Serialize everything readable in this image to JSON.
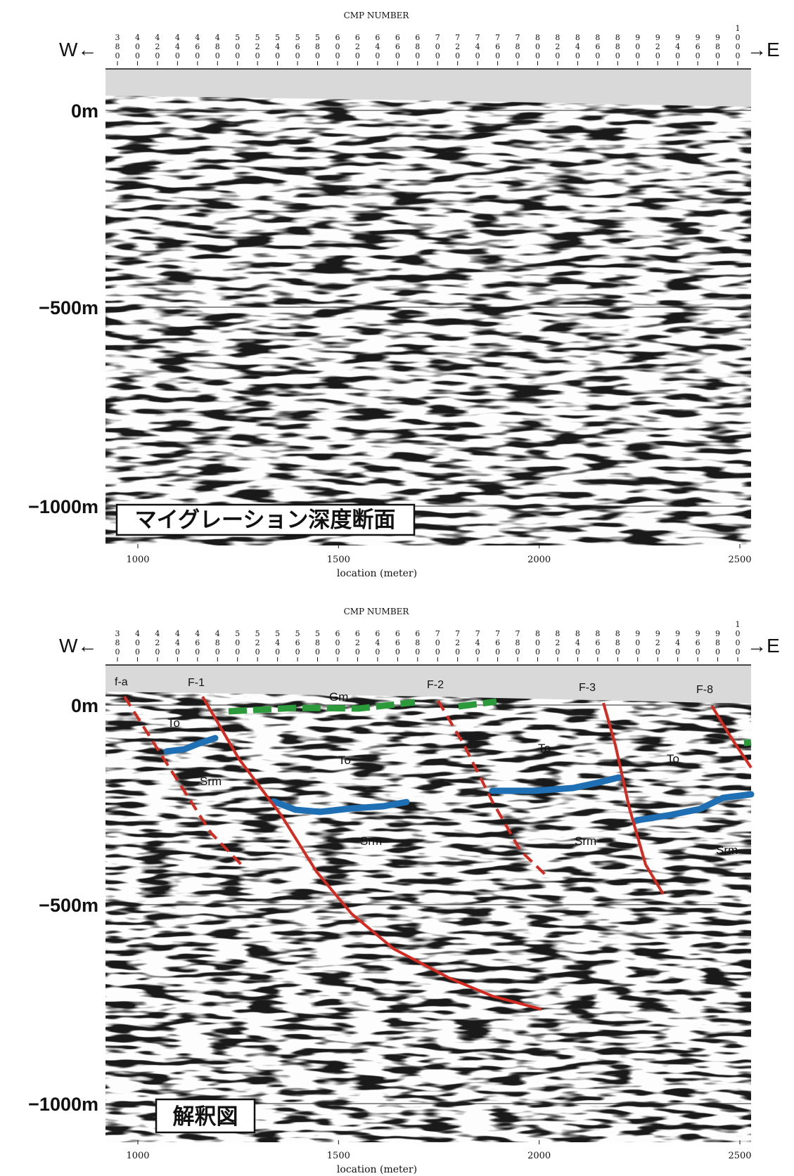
{
  "panels": [
    {
      "id": "top",
      "cmp_title": "CMP NUMBER",
      "west_label": "W←",
      "east_label": "→E",
      "cmp_numbers": [
        "380",
        "400",
        "420",
        "440",
        "460",
        "480",
        "500",
        "520",
        "540",
        "560",
        "580",
        "600",
        "620",
        "640",
        "660",
        "680",
        "700",
        "720",
        "740",
        "760",
        "780",
        "800",
        "820",
        "840",
        "860",
        "880",
        "900",
        "920",
        "940",
        "960",
        "980",
        "1000"
      ],
      "depth_labels": [
        "0m",
        "−500m",
        "−1000m"
      ],
      "x_ticks": [
        "1000",
        "1500",
        "2000",
        "2500"
      ],
      "x_axis_label": "location (meter)",
      "caption": "マイグレーション深度断面"
    },
    {
      "id": "bottom",
      "cmp_title": "CMP NUMBER",
      "west_label": "W←",
      "east_label": "→E",
      "cmp_numbers": [
        "380",
        "400",
        "420",
        "440",
        "460",
        "480",
        "500",
        "520",
        "540",
        "560",
        "580",
        "600",
        "620",
        "640",
        "660",
        "680",
        "700",
        "720",
        "740",
        "760",
        "780",
        "800",
        "820",
        "840",
        "860",
        "880",
        "900",
        "920",
        "940",
        "960",
        "980",
        "1000"
      ],
      "depth_labels": [
        "0m",
        "−500m",
        "−1000m"
      ],
      "x_ticks": [
        "1000",
        "1500",
        "2000",
        "2500"
      ],
      "x_axis_label": "location (meter)",
      "caption": "解釈図",
      "fault_labels": [
        "f-a",
        "F-1",
        "F-2",
        "F-3",
        "F-8"
      ],
      "unit_labels": [
        "To",
        "Srm",
        "Gm",
        "To",
        "Srm",
        "To",
        "Srm",
        "To",
        "Srm"
      ]
    }
  ],
  "colors": {
    "fault": "#d42a20",
    "horizon_blue": "#1f6fb4",
    "horizon_green": "#2a9a3a",
    "seismic_dark": "#1a1a1a",
    "surface_gray": "#d9d9d9"
  }
}
